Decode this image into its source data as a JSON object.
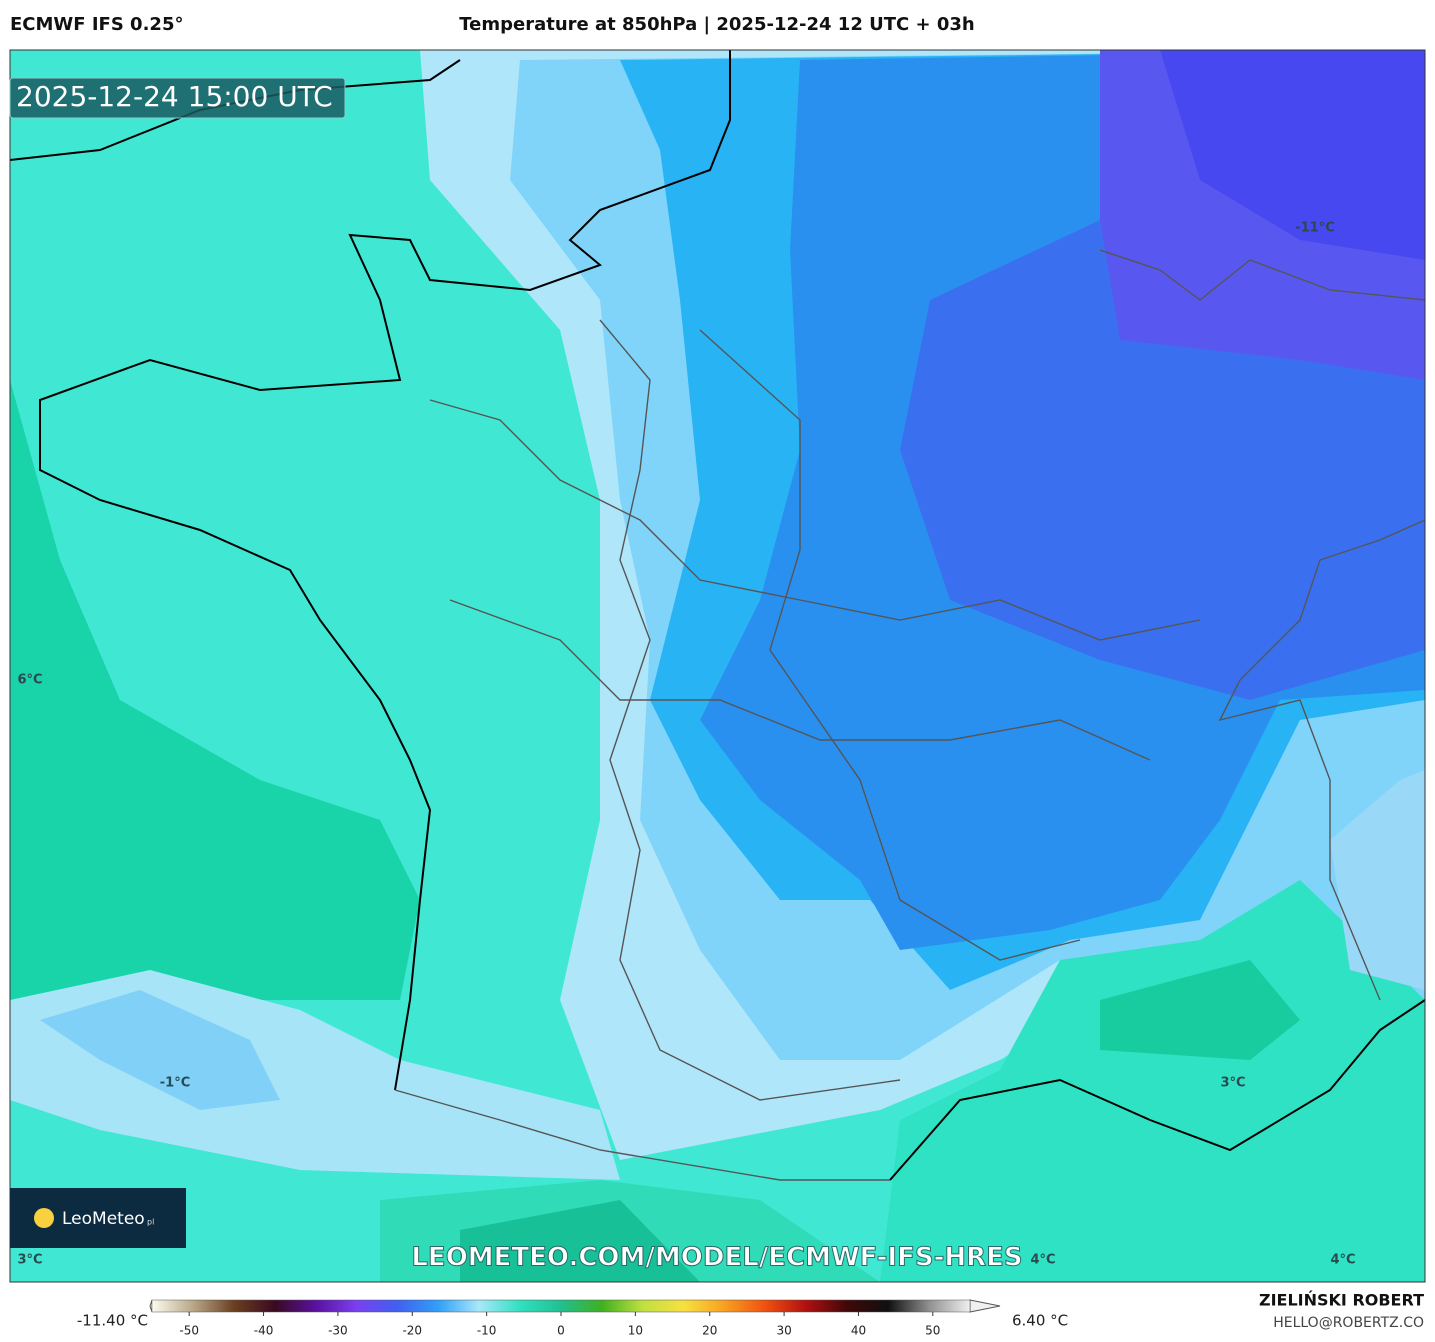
{
  "header": {
    "model": "ECMWF IFS 0.25°",
    "title": "Temperature at 850hPa | 2025-12-24 12 UTC + 03h"
  },
  "map": {
    "timestamp": "2025-12-24 15:00 UTC",
    "labels": [
      "-11°C",
      "6°C",
      "-1°C",
      "3°C",
      "4°C",
      "4°C",
      "3°C"
    ],
    "watermark": "LEOMETEO.COM/MODEL/ECMWF-IFS-HRES",
    "logo": "LeoMeteo",
    "logo_suffix": "pl"
  },
  "colorbar": {
    "min_label": "-11.40 °C",
    "max_label": "6.40 °C",
    "range": [
      -55,
      55
    ],
    "ticks": [
      -50,
      -40,
      -30,
      -20,
      -10,
      0,
      10,
      20,
      30,
      40,
      50
    ],
    "colors": [
      "#fdfbf0",
      "#b8a888",
      "#6a4020",
      "#3a0a20",
      "#5a10a0",
      "#7a40f0",
      "#4060f0",
      "#30a0f8",
      "#a8e8fa",
      "#30e0c0",
      "#20c090",
      "#40b020",
      "#c0e040",
      "#f8e040",
      "#f8a020",
      "#f05010",
      "#b01010",
      "#400808",
      "#101010",
      "#909090",
      "#f0f0f0"
    ]
  },
  "footer": {
    "author": "ZIELIŃSKI ROBERT",
    "email": "HELLO@ROBERTZ.CO"
  }
}
